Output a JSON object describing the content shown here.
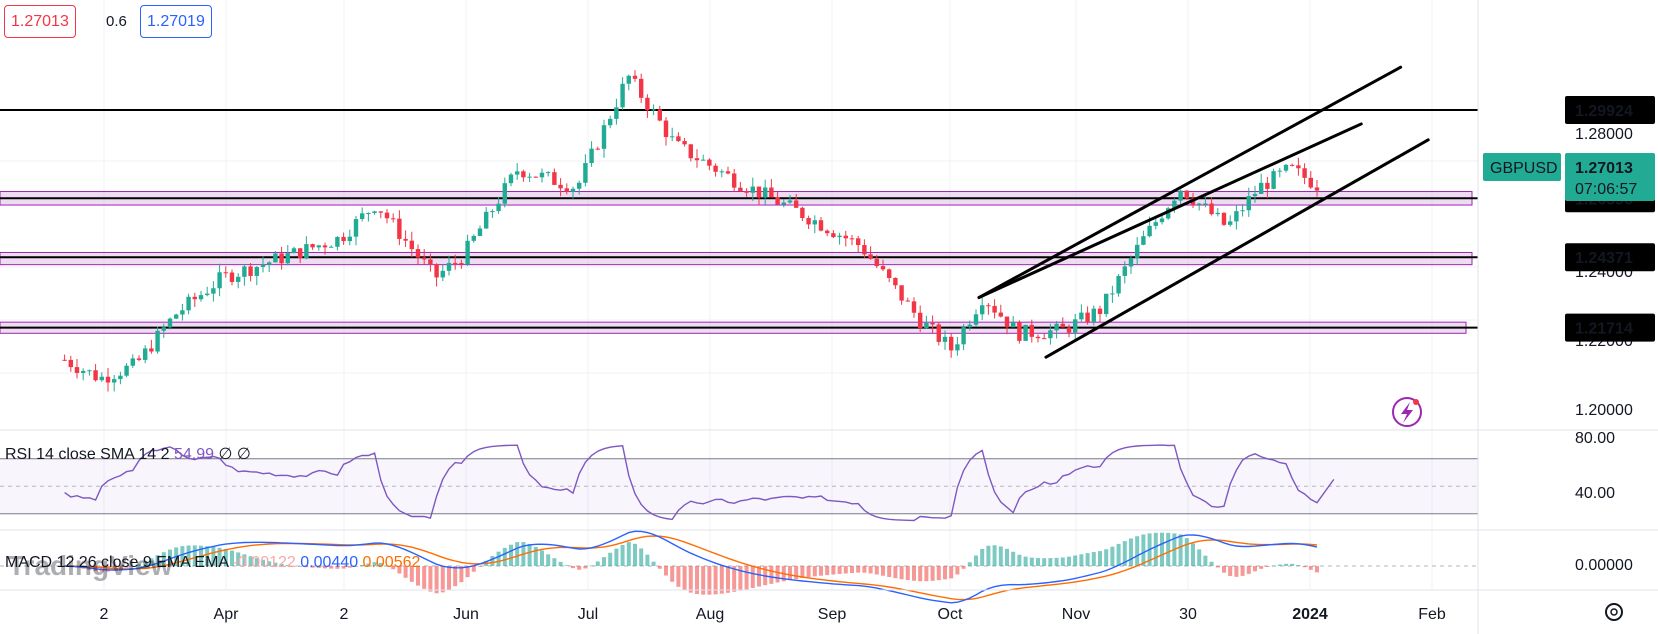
{
  "header": {
    "bid_price": "1.27013",
    "spread": "0.6",
    "ask_price": "1.27019"
  },
  "price_axis": {
    "symbol": "GBPUSD",
    "last_price": "1.27013",
    "countdown": "07:06:57",
    "level_tags": [
      "1.29924",
      "1.26596",
      "1.24371",
      "1.21714"
    ],
    "ticks": [
      "1.28000",
      "1.24000",
      "1.22000",
      "1.20000"
    ]
  },
  "rsi_panel": {
    "legend": "RSI 14 close SMA 14 2",
    "value": "54.99",
    "extra": "∅ ∅",
    "ticks": [
      "80.00",
      "40.00"
    ]
  },
  "macd_panel": {
    "legend": "MACD 12 26 close 9 EMA EMA",
    "hist_value": "-0.00122",
    "macd_value": "0.00440",
    "signal_value": "0.00562",
    "ticks": [
      "0.00000"
    ]
  },
  "time_axis": {
    "labels": [
      "2",
      "Apr",
      "2",
      "Jun",
      "Jul",
      "Aug",
      "Sep",
      "Oct",
      "Nov",
      "30",
      "2024",
      "Feb"
    ]
  },
  "watermark": "TradingView",
  "colors": {
    "up": "#22ab94",
    "down": "#f23645",
    "zone_fill": "#e1bee7",
    "zone_border": "#9c27b0",
    "rsi_line": "#7e57c2",
    "macd_line": "#2962ff",
    "signal_line": "#ff6d00",
    "price_tag": "#22ab94"
  },
  "chart_data": {
    "type": "candlestick",
    "symbol": "GBPUSD",
    "ylim": [
      1.1915,
      1.3184
    ],
    "horizontal_levels": [
      1.29924,
      1.26596,
      1.24371,
      1.21714
    ],
    "zones": [
      {
        "low": 1.2634,
        "high": 1.2685
      },
      {
        "low": 1.2409,
        "high": 1.2455
      },
      {
        "low": 1.215,
        "high": 1.2192
      }
    ],
    "channel": {
      "upper": {
        "from": [
          "2023-10-10",
          1.2285
        ],
        "to": [
          "2024-01-25",
          1.3154
        ]
      },
      "lower": {
        "from": [
          "2023-10-27",
          1.206
        ],
        "to": [
          "2024-02-01",
          1.288
        ]
      },
      "mid": {
        "from": [
          "2023-10-10",
          1.2285
        ],
        "to": [
          "2024-01-15",
          1.294
        ]
      }
    },
    "close_series": [
      {
        "date": "2023-02-20",
        "close": 1.205
      },
      {
        "date": "2023-03-01",
        "close": 1.198
      },
      {
        "date": "2023-03-10",
        "close": 1.203
      },
      {
        "date": "2023-03-20",
        "close": 1.222
      },
      {
        "date": "2023-04-01",
        "close": 1.236
      },
      {
        "date": "2023-04-15",
        "close": 1.243
      },
      {
        "date": "2023-05-01",
        "close": 1.251
      },
      {
        "date": "2023-05-10",
        "close": 1.264
      },
      {
        "date": "2023-05-25",
        "close": 1.236
      },
      {
        "date": "2023-06-01",
        "close": 1.244
      },
      {
        "date": "2023-06-15",
        "close": 1.277
      },
      {
        "date": "2023-06-30",
        "close": 1.27
      },
      {
        "date": "2023-07-13",
        "close": 1.312
      },
      {
        "date": "2023-07-25",
        "close": 1.286
      },
      {
        "date": "2023-08-10",
        "close": 1.272
      },
      {
        "date": "2023-08-25",
        "close": 1.261
      },
      {
        "date": "2023-09-10",
        "close": 1.248
      },
      {
        "date": "2023-09-25",
        "close": 1.22
      },
      {
        "date": "2023-10-03",
        "close": 1.209
      },
      {
        "date": "2023-10-11",
        "close": 1.229
      },
      {
        "date": "2023-10-20",
        "close": 1.215
      },
      {
        "date": "2023-10-31",
        "close": 1.216
      },
      {
        "date": "2023-11-10",
        "close": 1.224
      },
      {
        "date": "2023-11-20",
        "close": 1.249
      },
      {
        "date": "2023-11-30",
        "close": 1.27
      },
      {
        "date": "2023-12-12",
        "close": 1.255
      },
      {
        "date": "2023-12-20",
        "close": 1.27
      },
      {
        "date": "2023-12-28",
        "close": 1.277
      },
      {
        "date": "2024-01-05",
        "close": 1.27
      }
    ],
    "rsi": {
      "period": 14,
      "last": 54.99,
      "upper_band": 70,
      "lower_band": 30,
      "ylim": [
        20,
        90
      ]
    },
    "macd": {
      "fast": 12,
      "slow": 26,
      "signal": 9,
      "histogram": -0.00122,
      "macd": 0.0044,
      "signal_value": 0.00562
    }
  }
}
